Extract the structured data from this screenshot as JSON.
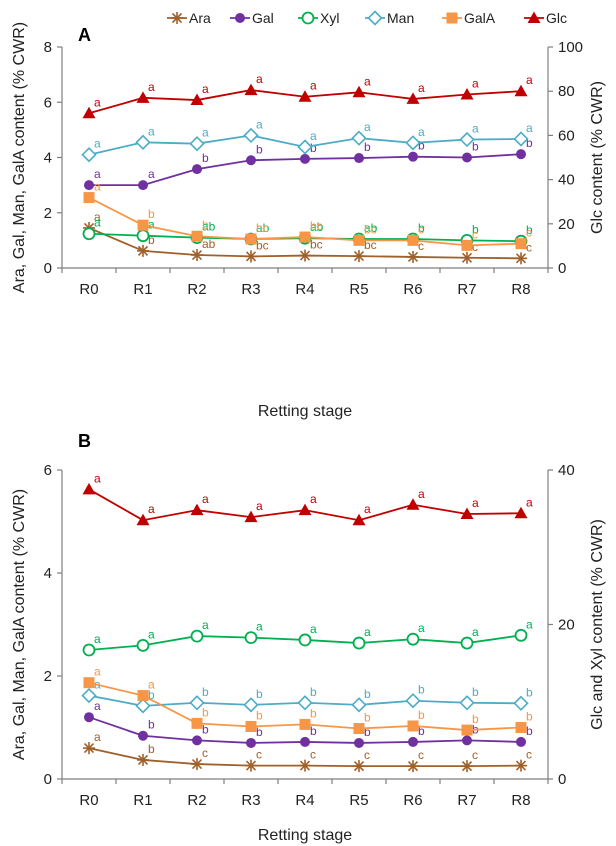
{
  "chart_data": {
    "type": "line",
    "legend": {
      "placement": "top-right",
      "entries": [
        {
          "name": "Ara",
          "color": "#a0602a",
          "marker": "star"
        },
        {
          "name": "Gal",
          "color": "#7030a0",
          "marker": "circle-filled"
        },
        {
          "name": "Xyl",
          "color": "#00b050",
          "marker": "circle-open"
        },
        {
          "name": "Man",
          "color": "#4bacc6",
          "marker": "diamond-open"
        },
        {
          "name": "GalA",
          "color": "#f79646",
          "marker": "square-filled"
        },
        {
          "name": "Glc",
          "color": "#c00000",
          "marker": "triangle-filled"
        }
      ]
    },
    "panels": [
      {
        "panel_label": "A",
        "x": [
          "R0",
          "R1",
          "R2",
          "R3",
          "R4",
          "R5",
          "R6",
          "R7",
          "R8"
        ],
        "xlabel": "Retting stage",
        "ylabel_left": "Ara, Gal, Man, GalA content  (% CWR)",
        "ylabel_right": "Glc content (% CWR)",
        "ylim_left": [
          0,
          8
        ],
        "yticks_left": [
          "0",
          "2",
          "4",
          "6",
          "8"
        ],
        "ylim_right": [
          0,
          100
        ],
        "yticks_right": [
          "0",
          "20",
          "40",
          "60",
          "80",
          "100"
        ],
        "series": [
          {
            "name": "Ara",
            "axis": "left",
            "values": [
              1.45,
              0.62,
              0.47,
              0.42,
              0.45,
              0.43,
              0.4,
              0.37,
              0.35
            ],
            "labels": [
              "a",
              "b",
              "ab",
              "bc",
              "bc",
              "bc",
              "c",
              "c",
              "c"
            ]
          },
          {
            "name": "Gal",
            "axis": "left",
            "values": [
              3.0,
              3.0,
              3.58,
              3.9,
              3.95,
              3.98,
              4.03,
              4.0,
              4.12
            ],
            "labels": [
              "a",
              "a",
              "b",
              "b",
              "b",
              "b",
              "b",
              "b",
              "b"
            ]
          },
          {
            "name": "Xyl",
            "axis": "left",
            "values": [
              1.24,
              1.17,
              1.1,
              1.05,
              1.08,
              1.05,
              1.05,
              1.0,
              0.97
            ],
            "labels": [
              "a",
              "a",
              "ab",
              "ab",
              "ab",
              "ab",
              "b",
              "b",
              "b"
            ]
          },
          {
            "name": "Man",
            "axis": "left",
            "values": [
              4.1,
              4.55,
              4.5,
              4.8,
              4.38,
              4.7,
              4.53,
              4.65,
              4.67
            ],
            "labels": [
              "a",
              "a",
              "a",
              "a",
              "a",
              "a",
              "a",
              "a",
              "a"
            ]
          },
          {
            "name": "GalA",
            "axis": "left",
            "values": [
              2.55,
              1.55,
              1.15,
              1.05,
              1.12,
              1.0,
              1.0,
              0.82,
              0.88
            ],
            "labels": [
              "a",
              "b",
              "b",
              "bc",
              "bc",
              "bc",
              "c",
              "c",
              "c"
            ]
          },
          {
            "name": "Glc",
            "axis": "right",
            "values": [
              70,
              77,
              76,
              80.5,
              77.5,
              79.5,
              76.5,
              78.5,
              80
            ],
            "labels": [
              "a",
              "a",
              "a",
              "a",
              "a",
              "a",
              "a",
              "a",
              "a"
            ]
          }
        ]
      },
      {
        "panel_label": "B",
        "x": [
          "R0",
          "R1",
          "R2",
          "R3",
          "R4",
          "R5",
          "R6",
          "R7",
          "R8"
        ],
        "xlabel": "Retting stage",
        "ylabel_left": "Ara, Gal, Man, GalA content  (% CWR)",
        "ylabel_right": "Glc and Xyl content (% CWR)",
        "ylim_left": [
          0,
          6
        ],
        "yticks_left": [
          "0",
          "2",
          "4",
          "6"
        ],
        "ylim_right": [
          0,
          40
        ],
        "yticks_right": [
          "0",
          "20",
          "40"
        ],
        "series": [
          {
            "name": "Ara",
            "axis": "left",
            "values": [
              0.6,
              0.37,
              0.29,
              0.26,
              0.26,
              0.25,
              0.25,
              0.25,
              0.26
            ],
            "labels": [
              "a",
              "b",
              "c",
              "c",
              "c",
              "c",
              "c",
              "c",
              "c"
            ]
          },
          {
            "name": "Gal",
            "axis": "left",
            "values": [
              1.2,
              0.84,
              0.75,
              0.7,
              0.72,
              0.7,
              0.72,
              0.75,
              0.72
            ],
            "labels": [
              "a",
              "b",
              "b",
              "b",
              "b",
              "b",
              "b",
              "b",
              "b"
            ]
          },
          {
            "name": "Xyl",
            "axis": "right",
            "values": [
              16.7,
              17.3,
              18.5,
              18.3,
              18.0,
              17.6,
              18.1,
              17.6,
              18.6
            ],
            "labels": [
              "a",
              "a",
              "a",
              "a",
              "a",
              "a",
              "a",
              "a",
              "a"
            ]
          },
          {
            "name": "Man",
            "axis": "left",
            "values": [
              1.62,
              1.42,
              1.48,
              1.44,
              1.48,
              1.44,
              1.52,
              1.48,
              1.47
            ],
            "labels": [
              "a",
              "b",
              "b",
              "b",
              "b",
              "b",
              "b",
              "b",
              "b"
            ]
          },
          {
            "name": "GalA",
            "axis": "left",
            "values": [
              1.87,
              1.62,
              1.08,
              1.02,
              1.06,
              0.98,
              1.03,
              0.95,
              1.0
            ],
            "labels": [
              "a",
              "a",
              "b",
              "b",
              "b",
              "b",
              "b",
              "b",
              "b"
            ]
          },
          {
            "name": "Glc",
            "axis": "right",
            "values": [
              37.5,
              33.5,
              34.8,
              33.9,
              34.8,
              33.5,
              35.5,
              34.3,
              34.4
            ],
            "labels": [
              "a",
              "a",
              "a",
              "a",
              "a",
              "a",
              "a",
              "a",
              "a"
            ]
          }
        ]
      }
    ]
  }
}
